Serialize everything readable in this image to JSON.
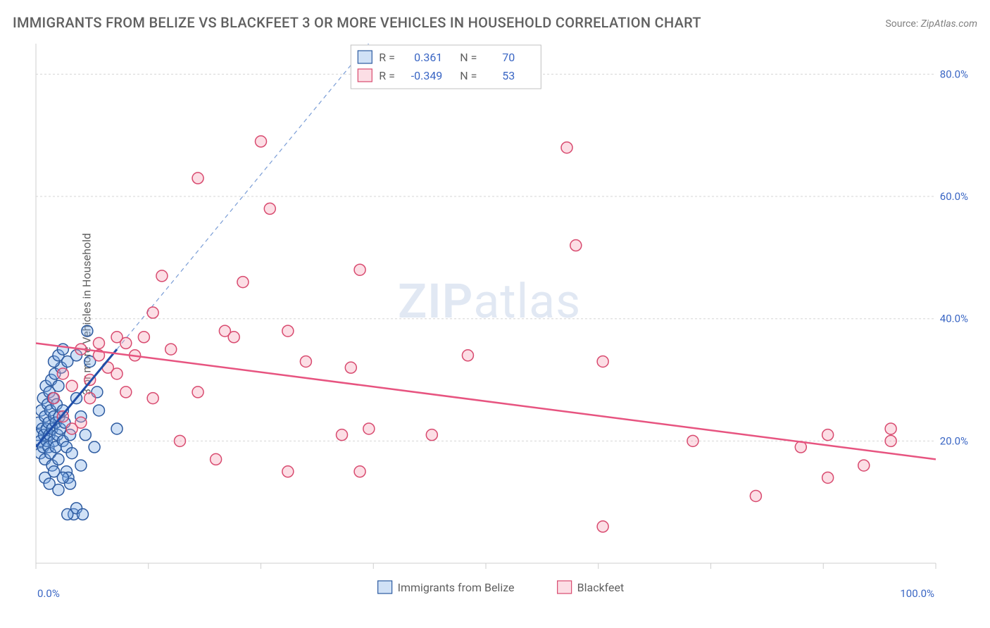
{
  "title": "IMMIGRANTS FROM BELIZE VS BLACKFEET 3 OR MORE VEHICLES IN HOUSEHOLD CORRELATION CHART",
  "source_label": "Source:",
  "source_value": "ZipAtlas.com",
  "y_axis_label": "3 or more Vehicles in Household",
  "watermark_zip": "ZIP",
  "watermark_atlas": "atlas",
  "chart": {
    "type": "scatter",
    "background_color": "#ffffff",
    "plot_border_color": "#cfcfcf",
    "grid_color": "#d5d5d5",
    "grid_dash": "3,3",
    "xlim": [
      0,
      100
    ],
    "ylim": [
      0,
      85
    ],
    "x_ticks": [
      0,
      12.5,
      25,
      37.5,
      50,
      62.5,
      75,
      87.5,
      100
    ],
    "x_tick_labels_visible": {
      "0": "0.0%",
      "100": "100.0%"
    },
    "x_tick_label_color": "#3a66c4",
    "y_ticks": [
      20,
      40,
      60,
      80
    ],
    "y_tick_labels": [
      "20.0%",
      "40.0%",
      "60.0%",
      "80.0%"
    ],
    "y_tick_label_color": "#3a66c4",
    "tick_fontsize": 15,
    "marker_radius": 8,
    "marker_stroke_width": 1.5,
    "series": [
      {
        "name": "Immigrants from Belize",
        "fill_color": "rgba(120,170,230,0.35)",
        "stroke_color": "#2c5aa0",
        "trend": {
          "x1": 0,
          "y1": 19,
          "x2": 9,
          "y2": 35,
          "color": "#1f4ea8",
          "width": 3,
          "dash": "none",
          "ext_x2": 42,
          "ext_y2": 94,
          "ext_dash": "6,5",
          "ext_color": "#7a9dd6",
          "ext_width": 1.2
        },
        "points": [
          [
            0.2,
            21
          ],
          [
            0.3,
            23
          ],
          [
            0.5,
            20
          ],
          [
            0.5,
            18
          ],
          [
            0.6,
            25
          ],
          [
            0.7,
            22
          ],
          [
            0.8,
            19
          ],
          [
            0.8,
            27
          ],
          [
            0.9,
            21
          ],
          [
            1.0,
            24
          ],
          [
            1.0,
            17
          ],
          [
            1.1,
            29
          ],
          [
            1.2,
            22
          ],
          [
            1.2,
            20
          ],
          [
            1.3,
            26
          ],
          [
            1.4,
            23
          ],
          [
            1.4,
            19
          ],
          [
            1.5,
            28
          ],
          [
            1.5,
            21
          ],
          [
            1.6,
            25
          ],
          [
            1.6,
            18
          ],
          [
            1.7,
            30
          ],
          [
            1.8,
            22
          ],
          [
            1.8,
            16
          ],
          [
            1.9,
            27
          ],
          [
            2.0,
            24
          ],
          [
            2.0,
            20
          ],
          [
            2.1,
            31
          ],
          [
            2.2,
            23
          ],
          [
            2.2,
            19
          ],
          [
            2.3,
            26
          ],
          [
            2.4,
            21
          ],
          [
            2.5,
            29
          ],
          [
            2.5,
            17
          ],
          [
            2.6,
            24
          ],
          [
            2.7,
            22
          ],
          [
            2.8,
            32
          ],
          [
            3.0,
            20
          ],
          [
            3.0,
            25
          ],
          [
            3.2,
            23
          ],
          [
            3.4,
            15
          ],
          [
            3.4,
            19
          ],
          [
            3.6,
            14
          ],
          [
            3.8,
            21
          ],
          [
            3.8,
            13
          ],
          [
            4.0,
            18
          ],
          [
            4.2,
            8
          ],
          [
            4.5,
            9
          ],
          [
            4.5,
            27
          ],
          [
            5.0,
            24
          ],
          [
            5.0,
            16
          ],
          [
            5.2,
            8
          ],
          [
            5.5,
            21
          ],
          [
            6.0,
            33
          ],
          [
            6.5,
            19
          ],
          [
            7.0,
            25
          ],
          [
            2.0,
            33
          ],
          [
            2.5,
            34
          ],
          [
            3.0,
            35
          ],
          [
            3.5,
            33
          ],
          [
            4.5,
            34
          ],
          [
            1.0,
            14
          ],
          [
            1.5,
            13
          ],
          [
            2.0,
            15
          ],
          [
            2.5,
            12
          ],
          [
            3.0,
            14
          ],
          [
            5.7,
            38
          ],
          [
            9.0,
            22
          ],
          [
            6.8,
            28
          ],
          [
            3.5,
            8
          ]
        ]
      },
      {
        "name": "Blackfeet",
        "fill_color": "rgba(245,160,180,0.35)",
        "stroke_color": "#d84a6f",
        "trend": {
          "x1": 0,
          "y1": 36,
          "x2": 100,
          "y2": 17,
          "color": "#e75480",
          "width": 2.5,
          "dash": "none"
        },
        "points": [
          [
            2,
            27
          ],
          [
            3,
            24
          ],
          [
            3,
            31
          ],
          [
            4,
            22
          ],
          [
            4,
            29
          ],
          [
            5,
            35
          ],
          [
            5,
            23
          ],
          [
            6,
            30
          ],
          [
            6,
            27
          ],
          [
            7,
            34
          ],
          [
            7,
            36
          ],
          [
            8,
            32
          ],
          [
            9,
            37
          ],
          [
            9,
            31
          ],
          [
            10,
            28
          ],
          [
            10,
            36
          ],
          [
            11,
            34
          ],
          [
            12,
            37
          ],
          [
            13,
            41
          ],
          [
            13,
            27
          ],
          [
            14,
            47
          ],
          [
            15,
            35
          ],
          [
            16,
            20
          ],
          [
            18,
            28
          ],
          [
            18,
            63
          ],
          [
            20,
            17
          ],
          [
            21,
            38
          ],
          [
            22,
            37
          ],
          [
            23,
            46
          ],
          [
            25,
            69
          ],
          [
            26,
            58
          ],
          [
            28,
            15
          ],
          [
            28,
            38
          ],
          [
            30,
            33
          ],
          [
            34,
            21
          ],
          [
            35,
            32
          ],
          [
            36,
            15
          ],
          [
            36,
            48
          ],
          [
            37,
            22
          ],
          [
            44,
            21
          ],
          [
            48,
            34
          ],
          [
            59,
            68
          ],
          [
            60,
            52
          ],
          [
            63,
            33
          ],
          [
            63,
            6
          ],
          [
            73,
            20
          ],
          [
            85,
            19
          ],
          [
            88,
            21
          ],
          [
            88,
            14
          ],
          [
            92,
            16
          ],
          [
            95,
            22
          ],
          [
            95,
            20
          ],
          [
            80,
            11
          ]
        ]
      }
    ],
    "legend_top": {
      "border_color": "#c0c0c0",
      "background": "#ffffff",
      "rows": [
        {
          "swatch_fill": "rgba(120,170,230,0.35)",
          "swatch_stroke": "#2c5aa0",
          "r_label": "R =",
          "r_value": "0.361",
          "n_label": "N =",
          "n_value": "70"
        },
        {
          "swatch_fill": "rgba(245,160,180,0.35)",
          "swatch_stroke": "#d84a6f",
          "r_label": "R =",
          "r_value": "-0.349",
          "n_label": "N =",
          "n_value": "53"
        }
      ],
      "label_color": "#606060",
      "value_color": "#3a66c4",
      "fontsize": 16
    },
    "legend_bottom": {
      "items": [
        {
          "swatch_fill": "rgba(120,170,230,0.35)",
          "swatch_stroke": "#2c5aa0",
          "label": "Immigrants from Belize"
        },
        {
          "swatch_fill": "rgba(245,160,180,0.35)",
          "swatch_stroke": "#d84a6f",
          "label": "Blackfeet"
        }
      ],
      "label_color": "#606060",
      "fontsize": 16
    }
  }
}
